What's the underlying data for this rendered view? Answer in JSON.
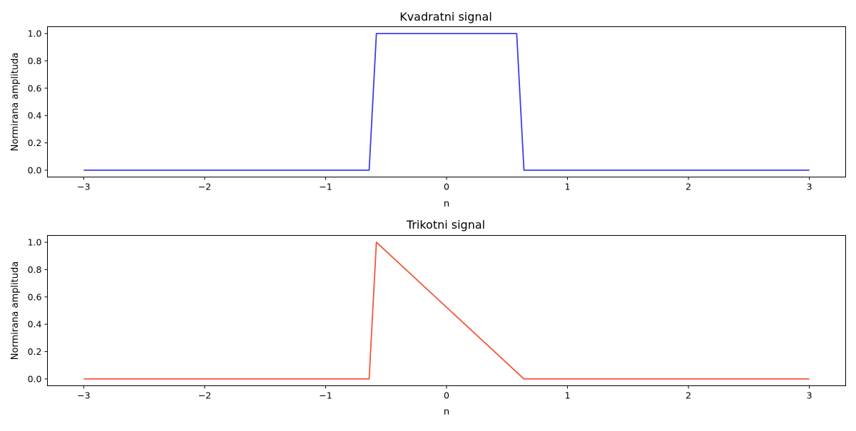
{
  "chart_data": [
    {
      "type": "line",
      "title": "Kvadratni signal",
      "xlabel": "n",
      "ylabel": "Normirana amplituda",
      "xlim": [
        -3.3,
        3.3
      ],
      "ylim": [
        -0.05,
        1.05
      ],
      "xticks": [
        -3,
        -2,
        -1,
        0,
        1,
        2,
        3
      ],
      "xtick_labels": [
        "−3",
        "−2",
        "−1",
        "0",
        "1",
        "2",
        "3"
      ],
      "yticks": [
        0.0,
        0.2,
        0.4,
        0.6,
        0.8,
        1.0
      ],
      "ytick_labels": [
        "0.0",
        "0.2",
        "0.4",
        "0.6",
        "0.8",
        "1.0"
      ],
      "grid": false,
      "series": [
        {
          "color": "#3b3fe8",
          "x": [
            -3,
            -0.64,
            -0.58,
            0.58,
            0.64,
            3
          ],
          "y": [
            0,
            0,
            1,
            1,
            0,
            0
          ]
        }
      ]
    },
    {
      "type": "line",
      "title": "Trikotni signal",
      "xlabel": "n",
      "ylabel": "Normirana amplituda",
      "xlim": [
        -3.3,
        3.3
      ],
      "ylim": [
        -0.05,
        1.05
      ],
      "xticks": [
        -3,
        -2,
        -1,
        0,
        1,
        2,
        3
      ],
      "xtick_labels": [
        "−3",
        "−2",
        "−1",
        "0",
        "1",
        "2",
        "3"
      ],
      "yticks": [
        0.0,
        0.2,
        0.4,
        0.6,
        0.8,
        1.0
      ],
      "ytick_labels": [
        "0.0",
        "0.2",
        "0.4",
        "0.6",
        "0.8",
        "1.0"
      ],
      "grid": false,
      "series": [
        {
          "color": "#f0573a",
          "x": [
            -3,
            -0.64,
            -0.58,
            0.64,
            3
          ],
          "y": [
            0,
            0,
            1,
            0,
            0
          ]
        }
      ]
    }
  ]
}
